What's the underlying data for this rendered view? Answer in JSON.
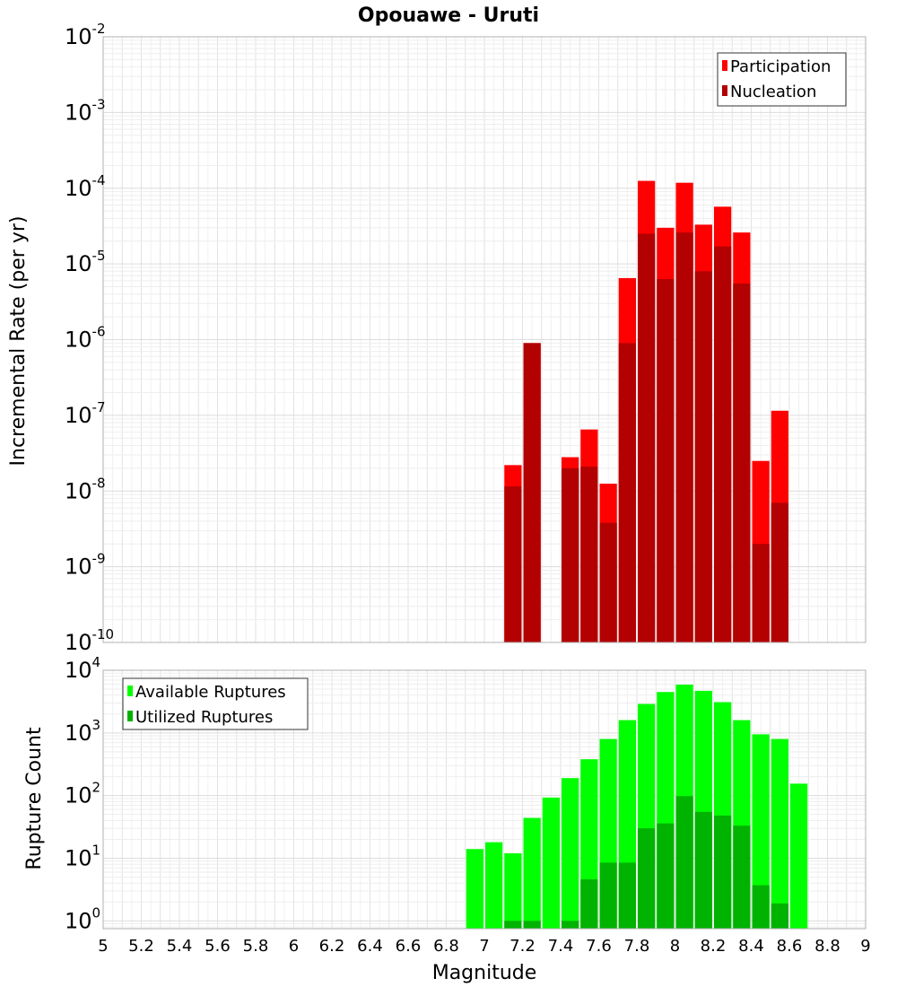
{
  "title": "Opouawe - Uruti",
  "xlabel": "Magnitude",
  "colors": {
    "participation": "#ff0000",
    "nucleation": "#b30000",
    "available": "#00ff00",
    "utilized": "#00b300",
    "grid": "#e6e6e6",
    "frame": "#b0b0b0"
  },
  "chart_data": [
    {
      "type": "bar",
      "title": "Opouawe - Uruti",
      "xlabel": "Magnitude",
      "ylabel": "Incremental Rate (per yr)",
      "xlim": [
        5,
        9
      ],
      "ylim": [
        1e-10,
        0.01
      ],
      "yscale": "log",
      "y_ticks": [
        {
          "base": "10",
          "exp": "-10",
          "value": 1e-10
        },
        {
          "base": "10",
          "exp": "-9",
          "value": 1e-09
        },
        {
          "base": "10",
          "exp": "-8",
          "value": 1e-08
        },
        {
          "base": "10",
          "exp": "-7",
          "value": 1e-07
        },
        {
          "base": "10",
          "exp": "-6",
          "value": 1e-06
        },
        {
          "base": "10",
          "exp": "-5",
          "value": 1e-05
        },
        {
          "base": "10",
          "exp": "-4",
          "value": 0.0001
        },
        {
          "base": "10",
          "exp": "-3",
          "value": 0.001
        },
        {
          "base": "10",
          "exp": "-2",
          "value": 0.01
        }
      ],
      "legend": [
        {
          "label": "Participation",
          "color": "#ff0000"
        },
        {
          "label": "Nucleation",
          "color": "#b30000"
        }
      ],
      "legend_position": "top-right",
      "grid": true,
      "series": [
        {
          "name": "Participation",
          "color": "#ff0000",
          "points": [
            {
              "x": 7.15,
              "y": 2.2e-08
            },
            {
              "x": 7.25,
              "y": 9e-07
            },
            {
              "x": 7.45,
              "y": 2.8e-08
            },
            {
              "x": 7.55,
              "y": 6.5e-08
            },
            {
              "x": 7.65,
              "y": 1.25e-08
            },
            {
              "x": 7.75,
              "y": 6.5e-06
            },
            {
              "x": 7.85,
              "y": 0.000125
            },
            {
              "x": 7.95,
              "y": 3e-05
            },
            {
              "x": 8.05,
              "y": 0.000118
            },
            {
              "x": 8.15,
              "y": 3.3e-05
            },
            {
              "x": 8.25,
              "y": 5.7e-05
            },
            {
              "x": 8.35,
              "y": 2.6e-05
            },
            {
              "x": 8.45,
              "y": 2.5e-08
            },
            {
              "x": 8.55,
              "y": 1.15e-07
            }
          ]
        },
        {
          "name": "Nucleation",
          "color": "#b30000",
          "points": [
            {
              "x": 7.15,
              "y": 1.15e-08
            },
            {
              "x": 7.25,
              "y": 9e-07
            },
            {
              "x": 7.45,
              "y": 2e-08
            },
            {
              "x": 7.55,
              "y": 2.1e-08
            },
            {
              "x": 7.65,
              "y": 3.8e-09
            },
            {
              "x": 7.75,
              "y": 9e-07
            },
            {
              "x": 7.85,
              "y": 2.5e-05
            },
            {
              "x": 7.95,
              "y": 6.3e-06
            },
            {
              "x": 8.05,
              "y": 2.6e-05
            },
            {
              "x": 8.15,
              "y": 8e-06
            },
            {
              "x": 8.25,
              "y": 1.7e-05
            },
            {
              "x": 8.35,
              "y": 5.5e-06
            },
            {
              "x": 8.45,
              "y": 2e-09
            },
            {
              "x": 8.55,
              "y": 7e-09
            }
          ]
        }
      ]
    },
    {
      "type": "bar",
      "xlabel": "Magnitude",
      "ylabel": "Rupture Count",
      "xlim": [
        5,
        9
      ],
      "ylim": [
        0.75,
        10000
      ],
      "yscale": "log",
      "y_ticks": [
        {
          "base": "10",
          "exp": "0",
          "value": 1
        },
        {
          "base": "10",
          "exp": "1",
          "value": 10
        },
        {
          "base": "10",
          "exp": "2",
          "value": 100
        },
        {
          "base": "10",
          "exp": "3",
          "value": 1000
        },
        {
          "base": "10",
          "exp": "4",
          "value": 10000
        }
      ],
      "x_ticks": [
        "5",
        "5.2",
        "5.4",
        "5.6",
        "5.8",
        "6",
        "6.2",
        "6.4",
        "6.6",
        "6.8",
        "7",
        "7.2",
        "7.4",
        "7.6",
        "7.8",
        "8",
        "8.2",
        "8.4",
        "8.6",
        "8.8",
        "9"
      ],
      "legend": [
        {
          "label": "Available Ruptures",
          "color": "#00ff00"
        },
        {
          "label": "Utilized Ruptures",
          "color": "#00b300"
        }
      ],
      "legend_position": "top-left",
      "grid": true,
      "series": [
        {
          "name": "Available Ruptures",
          "color": "#00ff00",
          "points": [
            {
              "x": 6.95,
              "y": 14
            },
            {
              "x": 7.05,
              "y": 18
            },
            {
              "x": 7.15,
              "y": 12
            },
            {
              "x": 7.25,
              "y": 44
            },
            {
              "x": 7.35,
              "y": 93
            },
            {
              "x": 7.45,
              "y": 190
            },
            {
              "x": 7.55,
              "y": 380
            },
            {
              "x": 7.65,
              "y": 800
            },
            {
              "x": 7.75,
              "y": 1600
            },
            {
              "x": 7.85,
              "y": 2900
            },
            {
              "x": 7.95,
              "y": 4500
            },
            {
              "x": 8.05,
              "y": 5900
            },
            {
              "x": 8.15,
              "y": 4700
            },
            {
              "x": 8.25,
              "y": 3100
            },
            {
              "x": 8.35,
              "y": 1600
            },
            {
              "x": 8.45,
              "y": 950
            },
            {
              "x": 8.55,
              "y": 800
            },
            {
              "x": 8.65,
              "y": 155
            }
          ]
        },
        {
          "name": "Utilized Ruptures",
          "color": "#00b300",
          "points": [
            {
              "x": 7.15,
              "y": 1
            },
            {
              "x": 7.25,
              "y": 1
            },
            {
              "x": 7.45,
              "y": 1
            },
            {
              "x": 7.55,
              "y": 4.6
            },
            {
              "x": 7.65,
              "y": 8.5
            },
            {
              "x": 7.75,
              "y": 8.5
            },
            {
              "x": 7.85,
              "y": 30
            },
            {
              "x": 7.95,
              "y": 36
            },
            {
              "x": 8.05,
              "y": 98
            },
            {
              "x": 8.15,
              "y": 55
            },
            {
              "x": 8.25,
              "y": 48
            },
            {
              "x": 8.35,
              "y": 33
            },
            {
              "x": 8.45,
              "y": 3.7
            },
            {
              "x": 8.55,
              "y": 1.9
            }
          ]
        }
      ]
    }
  ]
}
